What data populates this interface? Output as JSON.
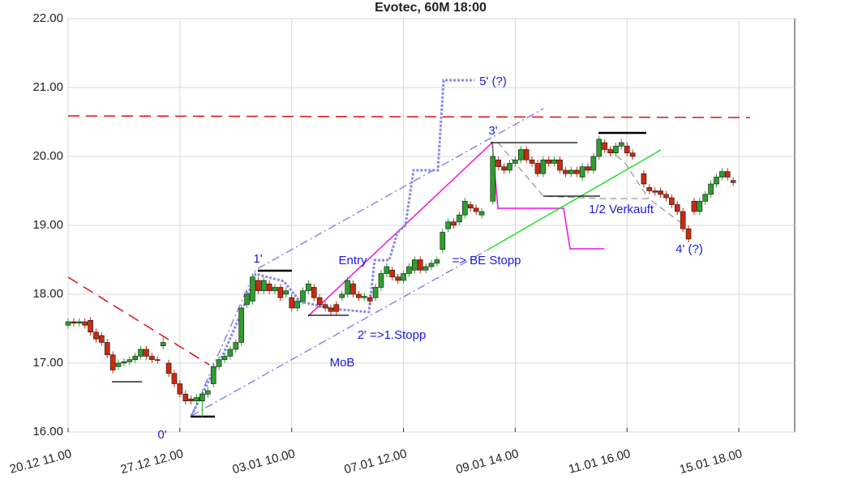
{
  "chart_data": {
    "type": "candlestick",
    "title": "Evotec, 60M 18:00",
    "xlim": [
      0,
      130
    ],
    "ylim": [
      16,
      22
    ],
    "xticks": [
      {
        "value": 0,
        "label": "20.12 11.00"
      },
      {
        "value": 20,
        "label": "27.12 12.00"
      },
      {
        "value": 40,
        "label": "03.01 10.00"
      },
      {
        "value": 60,
        "label": "07.01 12.00"
      },
      {
        "value": 80,
        "label": "09.01 14.00"
      },
      {
        "value": 100,
        "label": "11.01 16.00"
      },
      {
        "value": 120,
        "label": "15.01 18.00"
      }
    ],
    "yticks": [
      {
        "value": 16,
        "label": "16.00"
      },
      {
        "value": 17,
        "label": "17.00"
      },
      {
        "value": 18,
        "label": "18.00"
      },
      {
        "value": 19,
        "label": "19.00"
      },
      {
        "value": 20,
        "label": "20.00"
      },
      {
        "value": 21,
        "label": "21.00"
      },
      {
        "value": 22,
        "label": "22.00"
      }
    ],
    "grid": true,
    "up_color": "#2e9e2e",
    "down_color": "#cc2a10",
    "x": [
      0,
      1,
      2,
      3,
      4,
      5,
      6,
      7,
      8,
      9,
      10,
      11,
      12,
      13,
      14,
      15,
      16,
      17,
      18,
      19,
      20,
      21,
      22,
      23,
      24,
      25,
      26,
      27,
      28,
      29,
      30,
      31,
      32,
      33,
      34,
      35,
      36,
      37,
      38,
      39,
      40,
      41,
      42,
      43,
      44,
      45,
      46,
      47,
      48,
      49,
      50,
      51,
      52,
      53,
      54,
      55,
      56,
      57,
      58,
      59,
      60,
      61,
      62,
      63,
      64,
      65,
      66,
      67,
      68,
      69,
      70,
      71,
      72,
      73,
      74,
      76,
      77,
      78,
      79,
      80,
      81,
      82,
      83,
      84,
      85,
      86,
      87,
      88,
      89,
      90,
      91,
      92,
      93,
      94,
      95,
      96,
      97,
      98,
      99,
      100,
      101,
      103,
      104,
      105,
      106,
      107,
      108,
      109,
      110,
      111,
      112,
      113,
      114,
      115,
      116,
      117,
      118,
      119
    ],
    "open": [
      17.55,
      17.6,
      17.58,
      17.6,
      17.62,
      17.45,
      17.4,
      17.3,
      17.12,
      16.95,
      17.0,
      17.02,
      17.05,
      17.1,
      17.2,
      17.1,
      17.05,
      17.25,
      17.0,
      16.85,
      16.7,
      16.55,
      16.48,
      16.45,
      16.45,
      16.55,
      16.7,
      16.95,
      17.05,
      17.1,
      17.2,
      17.3,
      17.85,
      17.9,
      18.2,
      18.05,
      18.15,
      18.05,
      18.1,
      18.0,
      17.95,
      17.8,
      17.9,
      18.05,
      18.1,
      17.95,
      17.85,
      17.8,
      17.85,
      17.95,
      18.0,
      18.15,
      18.0,
      17.95,
      17.95,
      17.95,
      18.1,
      18.3,
      18.35,
      18.25,
      18.2,
      18.3,
      18.35,
      18.5,
      18.35,
      18.4,
      18.45,
      18.65,
      18.95,
      19.05,
      19.05,
      19.15,
      19.3,
      19.25,
      19.15,
      19.35,
      19.95,
      19.85,
      19.8,
      19.9,
      19.95,
      20.1,
      19.95,
      19.9,
      19.75,
      19.95,
      19.9,
      19.95,
      19.8,
      19.75,
      19.8,
      19.7,
      19.85,
      19.8,
      20.0,
      20.2,
      20.1,
      20.05,
      20.15,
      20.15,
      20.05,
      19.75,
      19.55,
      19.5,
      19.5,
      19.45,
      19.4,
      19.3,
      19.2,
      18.95,
      19.35,
      19.2,
      19.35,
      19.45,
      19.6,
      19.7,
      19.78,
      19.65
    ],
    "high": [
      17.65,
      17.65,
      17.65,
      17.65,
      17.67,
      17.5,
      17.45,
      17.35,
      17.17,
      17.05,
      17.07,
      17.1,
      17.15,
      17.25,
      17.25,
      17.15,
      17.1,
      17.38,
      17.05,
      16.9,
      16.75,
      16.6,
      16.53,
      16.55,
      16.6,
      16.65,
      17.0,
      17.1,
      17.15,
      17.25,
      17.35,
      17.85,
      18.05,
      18.3,
      18.25,
      18.25,
      18.2,
      18.15,
      18.15,
      18.1,
      18.0,
      17.95,
      18.1,
      18.2,
      18.15,
      18.0,
      17.9,
      17.85,
      17.9,
      18.05,
      18.25,
      18.2,
      18.05,
      18.02,
      18.0,
      18.15,
      18.35,
      18.45,
      18.4,
      18.3,
      18.35,
      18.45,
      18.55,
      18.55,
      18.45,
      18.5,
      18.55,
      18.95,
      19.1,
      19.1,
      19.2,
      19.4,
      19.35,
      19.3,
      19.25,
      20.2,
      20.0,
      19.9,
      19.95,
      20.0,
      20.15,
      20.15,
      20.0,
      19.95,
      20.0,
      20.0,
      20.0,
      20.0,
      19.85,
      19.85,
      19.85,
      19.9,
      19.9,
      20.05,
      20.3,
      20.25,
      20.15,
      20.2,
      20.25,
      20.2,
      20.1,
      19.8,
      19.6,
      19.55,
      19.55,
      19.5,
      19.45,
      19.35,
      19.25,
      19.0,
      19.4,
      19.4,
      19.5,
      19.65,
      19.75,
      19.83,
      19.83,
      19.7
    ],
    "low": [
      17.5,
      17.53,
      17.53,
      17.5,
      17.4,
      17.3,
      17.25,
      17.07,
      16.85,
      16.9,
      16.95,
      16.97,
      17.0,
      17.05,
      17.05,
      17.0,
      16.99,
      17.2,
      16.8,
      16.65,
      16.5,
      16.4,
      16.4,
      16.4,
      16.22,
      16.5,
      16.65,
      16.9,
      17.0,
      17.05,
      17.15,
      17.25,
      17.8,
      17.85,
      18.0,
      18.0,
      18.0,
      18.0,
      17.9,
      17.95,
      17.75,
      17.75,
      17.85,
      18.0,
      17.9,
      17.8,
      17.75,
      17.7,
      17.7,
      17.9,
      17.95,
      17.95,
      17.9,
      17.9,
      17.85,
      17.9,
      18.05,
      18.25,
      18.2,
      18.15,
      18.15,
      18.25,
      18.3,
      18.3,
      18.3,
      18.35,
      18.4,
      18.6,
      18.9,
      18.95,
      19.0,
      19.1,
      19.2,
      19.15,
      19.1,
      19.3,
      19.8,
      19.75,
      19.75,
      19.85,
      19.9,
      19.9,
      19.85,
      19.7,
      19.7,
      19.85,
      19.85,
      19.75,
      19.7,
      19.7,
      19.7,
      19.65,
      19.75,
      19.75,
      19.95,
      20.05,
      20.0,
      20.0,
      20.1,
      20.0,
      19.95,
      19.55,
      19.45,
      19.43,
      19.4,
      19.35,
      19.25,
      19.15,
      18.9,
      18.75,
      19.15,
      19.15,
      19.3,
      19.4,
      19.55,
      19.65,
      19.65,
      19.57
    ],
    "close": [
      17.6,
      17.58,
      17.6,
      17.55,
      17.45,
      17.35,
      17.3,
      17.12,
      16.9,
      17.0,
      17.02,
      17.05,
      17.1,
      17.2,
      17.1,
      17.05,
      17.04,
      17.3,
      16.85,
      16.7,
      16.55,
      16.45,
      16.45,
      16.5,
      16.55,
      16.6,
      16.95,
      17.05,
      17.1,
      17.2,
      17.3,
      17.8,
      18.0,
      18.25,
      18.05,
      18.2,
      18.05,
      18.1,
      17.95,
      18.05,
      17.8,
      17.9,
      18.05,
      18.15,
      17.95,
      17.85,
      17.8,
      17.75,
      17.75,
      18.0,
      18.2,
      18.0,
      17.95,
      17.97,
      17.9,
      18.1,
      18.3,
      18.4,
      18.25,
      18.2,
      18.3,
      18.4,
      18.5,
      18.35,
      18.4,
      18.45,
      18.5,
      18.9,
      19.05,
      19.0,
      19.15,
      19.35,
      19.25,
      19.2,
      19.2,
      20.0,
      19.85,
      19.8,
      19.9,
      19.95,
      20.1,
      19.95,
      19.9,
      19.75,
      19.95,
      19.9,
      19.95,
      19.8,
      19.75,
      19.8,
      19.75,
      19.85,
      19.8,
      20.0,
      20.25,
      20.1,
      20.05,
      20.15,
      20.2,
      20.05,
      20.0,
      19.6,
      19.5,
      19.48,
      19.45,
      19.4,
      19.3,
      19.2,
      18.95,
      18.8,
      19.2,
      19.35,
      19.45,
      19.6,
      19.7,
      19.78,
      19.7,
      19.62
    ],
    "annotations": [
      "1'",
      "Entry",
      "=> BE Stopp",
      "2' =>1.Stopp",
      "MoB",
      "0'",
      "3'",
      "5' (?)",
      "1/2 Verkauft",
      "4' (?)"
    ]
  }
}
